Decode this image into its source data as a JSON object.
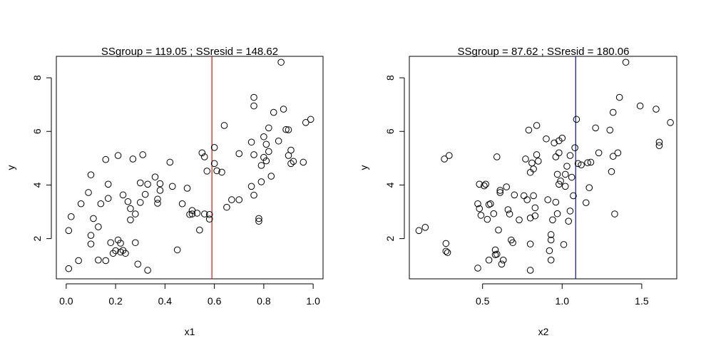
{
  "chart_data": [
    {
      "type": "scatter",
      "title": "SSgroup = 119.05 ; SSresid = 148.62",
      "title_color": "#ff0000",
      "xlabel": "x1",
      "ylabel": "y",
      "xlim": [
        -0.04,
        1.04
      ],
      "ylim": [
        0.5,
        8.8
      ],
      "xticks": [
        0.0,
        0.2,
        0.4,
        0.6,
        0.8,
        1.0
      ],
      "xtick_labels": [
        "0.0",
        "0.2",
        "0.4",
        "0.6",
        "0.8",
        "1.0"
      ],
      "yticks": [
        2,
        4,
        6,
        8
      ],
      "ytick_labels": [
        "2",
        "4",
        "6",
        "8"
      ],
      "vline": {
        "x": 0.59,
        "color": "#ff0000"
      },
      "points": [
        [
          0.01,
          0.88
        ],
        [
          0.01,
          2.3
        ],
        [
          0.02,
          2.82
        ],
        [
          0.05,
          1.18
        ],
        [
          0.06,
          3.3
        ],
        [
          0.09,
          3.72
        ],
        [
          0.1,
          1.8
        ],
        [
          0.1,
          2.12
        ],
        [
          0.1,
          4.38
        ],
        [
          0.11,
          2.75
        ],
        [
          0.13,
          1.2
        ],
        [
          0.13,
          2.44
        ],
        [
          0.14,
          3.3
        ],
        [
          0.16,
          1.18
        ],
        [
          0.16,
          4.95
        ],
        [
          0.17,
          3.5
        ],
        [
          0.17,
          4.03
        ],
        [
          0.18,
          1.85
        ],
        [
          0.19,
          1.45
        ],
        [
          0.2,
          1.55
        ],
        [
          0.21,
          1.95
        ],
        [
          0.21,
          5.1
        ],
        [
          0.22,
          1.5
        ],
        [
          0.22,
          1.83
        ],
        [
          0.23,
          1.56
        ],
        [
          0.23,
          3.63
        ],
        [
          0.24,
          1.45
        ],
        [
          0.25,
          3.38
        ],
        [
          0.26,
          2.7
        ],
        [
          0.26,
          3.12
        ],
        [
          0.27,
          4.97
        ],
        [
          0.28,
          1.85
        ],
        [
          0.28,
          2.92
        ],
        [
          0.29,
          1.05
        ],
        [
          0.3,
          3.35
        ],
        [
          0.3,
          4.08
        ],
        [
          0.31,
          5.13
        ],
        [
          0.32,
          3.65
        ],
        [
          0.33,
          0.82
        ],
        [
          0.33,
          4.03
        ],
        [
          0.36,
          4.3
        ],
        [
          0.37,
          3.47
        ],
        [
          0.37,
          3.32
        ],
        [
          0.38,
          3.8
        ],
        [
          0.38,
          4.05
        ],
        [
          0.42,
          4.85
        ],
        [
          0.43,
          3.95
        ],
        [
          0.45,
          1.58
        ],
        [
          0.47,
          3.3
        ],
        [
          0.49,
          3.88
        ],
        [
          0.5,
          2.9
        ],
        [
          0.51,
          2.92
        ],
        [
          0.51,
          3.05
        ],
        [
          0.54,
          2.32
        ],
        [
          0.55,
          5.2
        ],
        [
          0.56,
          5.05
        ],
        [
          0.56,
          2.92
        ],
        [
          0.57,
          4.52
        ],
        [
          0.58,
          2.73
        ],
        [
          0.58,
          2.9
        ],
        [
          0.6,
          4.8
        ],
        [
          0.6,
          5.4
        ],
        [
          0.61,
          4.53
        ],
        [
          0.63,
          4.48
        ],
        [
          0.64,
          6.22
        ],
        [
          0.65,
          3.17
        ],
        [
          0.67,
          3.45
        ],
        [
          0.7,
          5.17
        ],
        [
          0.75,
          3.95
        ],
        [
          0.75,
          5.6
        ],
        [
          0.76,
          3.62
        ],
        [
          0.76,
          5.13
        ],
        [
          0.76,
          7.27
        ],
        [
          0.76,
          6.95
        ],
        [
          0.78,
          2.75
        ],
        [
          0.78,
          2.65
        ],
        [
          0.79,
          4.73
        ],
        [
          0.79,
          4.12
        ],
        [
          0.8,
          5.03
        ],
        [
          0.81,
          5.52
        ],
        [
          0.81,
          4.9
        ],
        [
          0.82,
          6.13
        ],
        [
          0.82,
          5.25
        ],
        [
          0.83,
          4.33
        ],
        [
          0.84,
          6.71
        ],
        [
          0.86,
          5.64
        ],
        [
          0.87,
          8.58
        ],
        [
          0.88,
          6.83
        ],
        [
          0.89,
          6.07
        ],
        [
          0.9,
          5.1
        ],
        [
          0.9,
          6.06
        ],
        [
          0.91,
          4.8
        ],
        [
          0.91,
          5.3
        ],
        [
          0.92,
          4.88
        ],
        [
          0.96,
          4.85
        ],
        [
          0.97,
          6.33
        ],
        [
          0.99,
          6.45
        ],
        [
          0.8,
          5.8
        ],
        [
          0.53,
          2.95
        ],
        [
          0.7,
          3.45
        ]
      ]
    },
    {
      "type": "scatter",
      "title": "SSgroup = 87.62 ; SSresid = 180.06",
      "title_color": "#0000ff",
      "xlabel": "x2",
      "ylabel": "y",
      "xlim": [
        0.04,
        1.72
      ],
      "ylim": [
        0.5,
        8.8
      ],
      "xticks": [
        0.5,
        1.0,
        1.5
      ],
      "xtick_labels": [
        "0.5",
        "1.0",
        "1.5"
      ],
      "yticks": [
        2,
        4,
        6,
        8
      ],
      "ytick_labels": [
        "2",
        "4",
        "6",
        "8"
      ],
      "vline": {
        "x": 1.085,
        "color": "#0000ff"
      },
      "points": [
        [
          0.1,
          2.3
        ],
        [
          0.14,
          2.42
        ],
        [
          0.26,
          4.97
        ],
        [
          0.27,
          1.82
        ],
        [
          0.27,
          1.53
        ],
        [
          0.28,
          1.48
        ],
        [
          0.29,
          5.1
        ],
        [
          0.47,
          3.3
        ],
        [
          0.47,
          0.9
        ],
        [
          0.48,
          4.03
        ],
        [
          0.48,
          3.12
        ],
        [
          0.49,
          2.87
        ],
        [
          0.51,
          3.97
        ],
        [
          0.52,
          4.03
        ],
        [
          0.53,
          2.72
        ],
        [
          0.54,
          3.27
        ],
        [
          0.54,
          1.2
        ],
        [
          0.55,
          3.3
        ],
        [
          0.57,
          2.93
        ],
        [
          0.58,
          1.4
        ],
        [
          0.58,
          1.58
        ],
        [
          0.59,
          1.42
        ],
        [
          0.59,
          5.05
        ],
        [
          0.6,
          2.32
        ],
        [
          0.61,
          3.8
        ],
        [
          0.61,
          3.72
        ],
        [
          0.62,
          1.05
        ],
        [
          0.63,
          1.2
        ],
        [
          0.65,
          3.93
        ],
        [
          0.66,
          3.08
        ],
        [
          0.67,
          2.92
        ],
        [
          0.68,
          1.95
        ],
        [
          0.69,
          1.85
        ],
        [
          0.7,
          3.63
        ],
        [
          0.73,
          2.7
        ],
        [
          0.76,
          3.6
        ],
        [
          0.77,
          4.97
        ],
        [
          0.78,
          3.45
        ],
        [
          0.79,
          6.05
        ],
        [
          0.8,
          2.77
        ],
        [
          0.8,
          4.47
        ],
        [
          0.8,
          1.8
        ],
        [
          0.8,
          0.82
        ],
        [
          0.81,
          4.82
        ],
        [
          0.82,
          4.6
        ],
        [
          0.82,
          3.6
        ],
        [
          0.83,
          3.15
        ],
        [
          0.83,
          2.85
        ],
        [
          0.84,
          6.22
        ],
        [
          0.84,
          5.13
        ],
        [
          0.85,
          4.89
        ],
        [
          0.9,
          5.72
        ],
        [
          0.91,
          3.45
        ],
        [
          0.92,
          1.55
        ],
        [
          0.93,
          2.15
        ],
        [
          0.93,
          1.95
        ],
        [
          0.93,
          1.2
        ],
        [
          0.94,
          2.7
        ],
        [
          0.95,
          5.57
        ],
        [
          0.96,
          5.05
        ],
        [
          0.96,
          3.36
        ],
        [
          0.97,
          4.4
        ],
        [
          0.98,
          4.03
        ],
        [
          0.98,
          5.2
        ],
        [
          0.99,
          4.15
        ],
        [
          1.0,
          5.75
        ],
        [
          1.01,
          1.78
        ],
        [
          1.02,
          4.4
        ],
        [
          1.02,
          3.95
        ],
        [
          1.03,
          4.7
        ],
        [
          1.04,
          2.65
        ],
        [
          1.05,
          5.1
        ],
        [
          1.05,
          3.03
        ],
        [
          1.06,
          4.29
        ],
        [
          1.07,
          3.6
        ],
        [
          1.08,
          5.39
        ],
        [
          1.09,
          6.45
        ],
        [
          1.1,
          4.8
        ],
        [
          1.12,
          4.75
        ],
        [
          1.15,
          3.34
        ],
        [
          1.16,
          4.83
        ],
        [
          1.17,
          3.9
        ],
        [
          1.18,
          4.85
        ],
        [
          1.21,
          6.13
        ],
        [
          1.23,
          5.2
        ],
        [
          1.3,
          6.05
        ],
        [
          1.31,
          4.5
        ],
        [
          1.32,
          5.07
        ],
        [
          1.32,
          6.71
        ],
        [
          1.33,
          2.92
        ],
        [
          1.35,
          5.2
        ],
        [
          1.36,
          7.27
        ],
        [
          1.4,
          8.58
        ],
        [
          1.49,
          6.95
        ],
        [
          1.59,
          6.83
        ],
        [
          1.61,
          5.6
        ],
        [
          1.61,
          5.47
        ],
        [
          1.68,
          6.33
        ],
        [
          0.97,
          2.93
        ],
        [
          0.98,
          5.65
        ]
      ]
    }
  ]
}
